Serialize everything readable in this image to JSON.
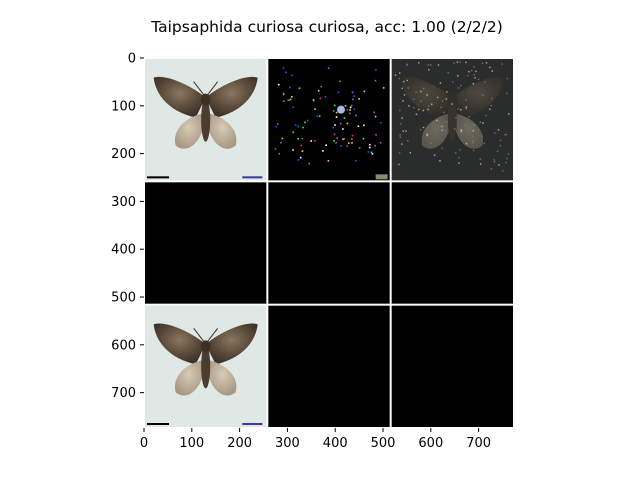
{
  "chart_data": {
    "type": "image-grid",
    "title": "Taipsaphida curiosa curiosa, acc: 1.00 (2/2/2)",
    "xlim": [
      0,
      774
    ],
    "ylim": [
      774,
      0
    ],
    "x_ticks": [
      0,
      100,
      200,
      300,
      400,
      500,
      600,
      700
    ],
    "y_ticks": [
      0,
      100,
      200,
      300,
      400,
      500,
      600,
      700
    ],
    "grid": {
      "rows": 3,
      "cols": 3,
      "tile_size": 258,
      "gap_color": "#ffffff"
    },
    "tiles": [
      {
        "row": 0,
        "col": 0,
        "content": "moth-photo",
        "background": "#dfe8e4"
      },
      {
        "row": 0,
        "col": 1,
        "content": "sparse-attribution-map",
        "background": "#000000"
      },
      {
        "row": 0,
        "col": 2,
        "content": "masked-moth",
        "background": "#2a2d2b"
      },
      {
        "row": 1,
        "col": 0,
        "content": "blank",
        "background": "#000000"
      },
      {
        "row": 1,
        "col": 1,
        "content": "blank",
        "background": "#000000"
      },
      {
        "row": 1,
        "col": 2,
        "content": "blank",
        "background": "#000000"
      },
      {
        "row": 2,
        "col": 0,
        "content": "moth-photo",
        "background": "#dfe8e4"
      },
      {
        "row": 2,
        "col": 1,
        "content": "blank",
        "background": "#000000"
      },
      {
        "row": 2,
        "col": 2,
        "content": "blank",
        "background": "#000000"
      }
    ],
    "colors": {
      "moth_dark": "#3b3128",
      "moth_mid": "#6b5a48",
      "moth_light": "#c9bca8",
      "specimen_bg": "#dfe8e4"
    }
  }
}
